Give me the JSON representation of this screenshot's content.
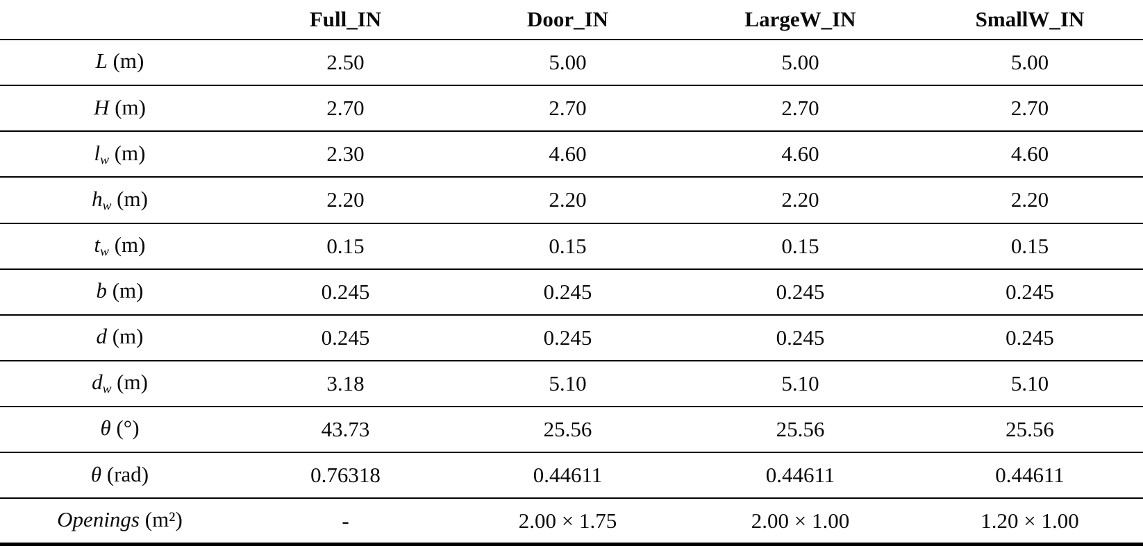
{
  "meta": {
    "background_color": "#ffffff",
    "text_color": "#0a0a0a",
    "rule_color": "#000000"
  },
  "table": {
    "header": [
      "",
      "Full_IN",
      "Door_IN",
      "LargeW_IN",
      "SmallW_IN"
    ],
    "rows": [
      {
        "var": "L",
        "sub": "",
        "unit": " (m)",
        "values": [
          "2.50",
          "5.00",
          "5.00",
          "5.00"
        ]
      },
      {
        "var": "H",
        "sub": "",
        "unit": " (m)",
        "values": [
          "2.70",
          "2.70",
          "2.70",
          "2.70"
        ]
      },
      {
        "var": "l",
        "sub": "w",
        "unit": " (m)",
        "values": [
          "2.30",
          "4.60",
          "4.60",
          "4.60"
        ]
      },
      {
        "var": "h",
        "sub": "w",
        "unit": " (m)",
        "values": [
          "2.20",
          "2.20",
          "2.20",
          "2.20"
        ]
      },
      {
        "var": "t",
        "sub": "w",
        "unit": " (m)",
        "values": [
          "0.15",
          "0.15",
          "0.15",
          "0.15"
        ]
      },
      {
        "var": "b",
        "sub": "",
        "unit": " (m)",
        "values": [
          "0.245",
          "0.245",
          "0.245",
          "0.245"
        ]
      },
      {
        "var": "d",
        "sub": "",
        "unit": " (m)",
        "values": [
          "0.245",
          "0.245",
          "0.245",
          "0.245"
        ]
      },
      {
        "var": "d",
        "sub": "w",
        "unit": " (m)",
        "values": [
          "3.18",
          "5.10",
          "5.10",
          "5.10"
        ]
      },
      {
        "var": "θ",
        "sub": "",
        "unit": " (°)",
        "values": [
          "43.73",
          "25.56",
          "25.56",
          "25.56"
        ]
      },
      {
        "var": "θ",
        "sub": "",
        "unit": " (rad)",
        "values": [
          "0.76318",
          "0.44611",
          "0.44611",
          "0.44611"
        ]
      },
      {
        "var": "Openings",
        "sub": "",
        "unit": " (m²)",
        "values": [
          "-",
          "2.00 × 1.75",
          "2.00 × 1.00",
          "1.20 × 1.00"
        ]
      }
    ]
  }
}
